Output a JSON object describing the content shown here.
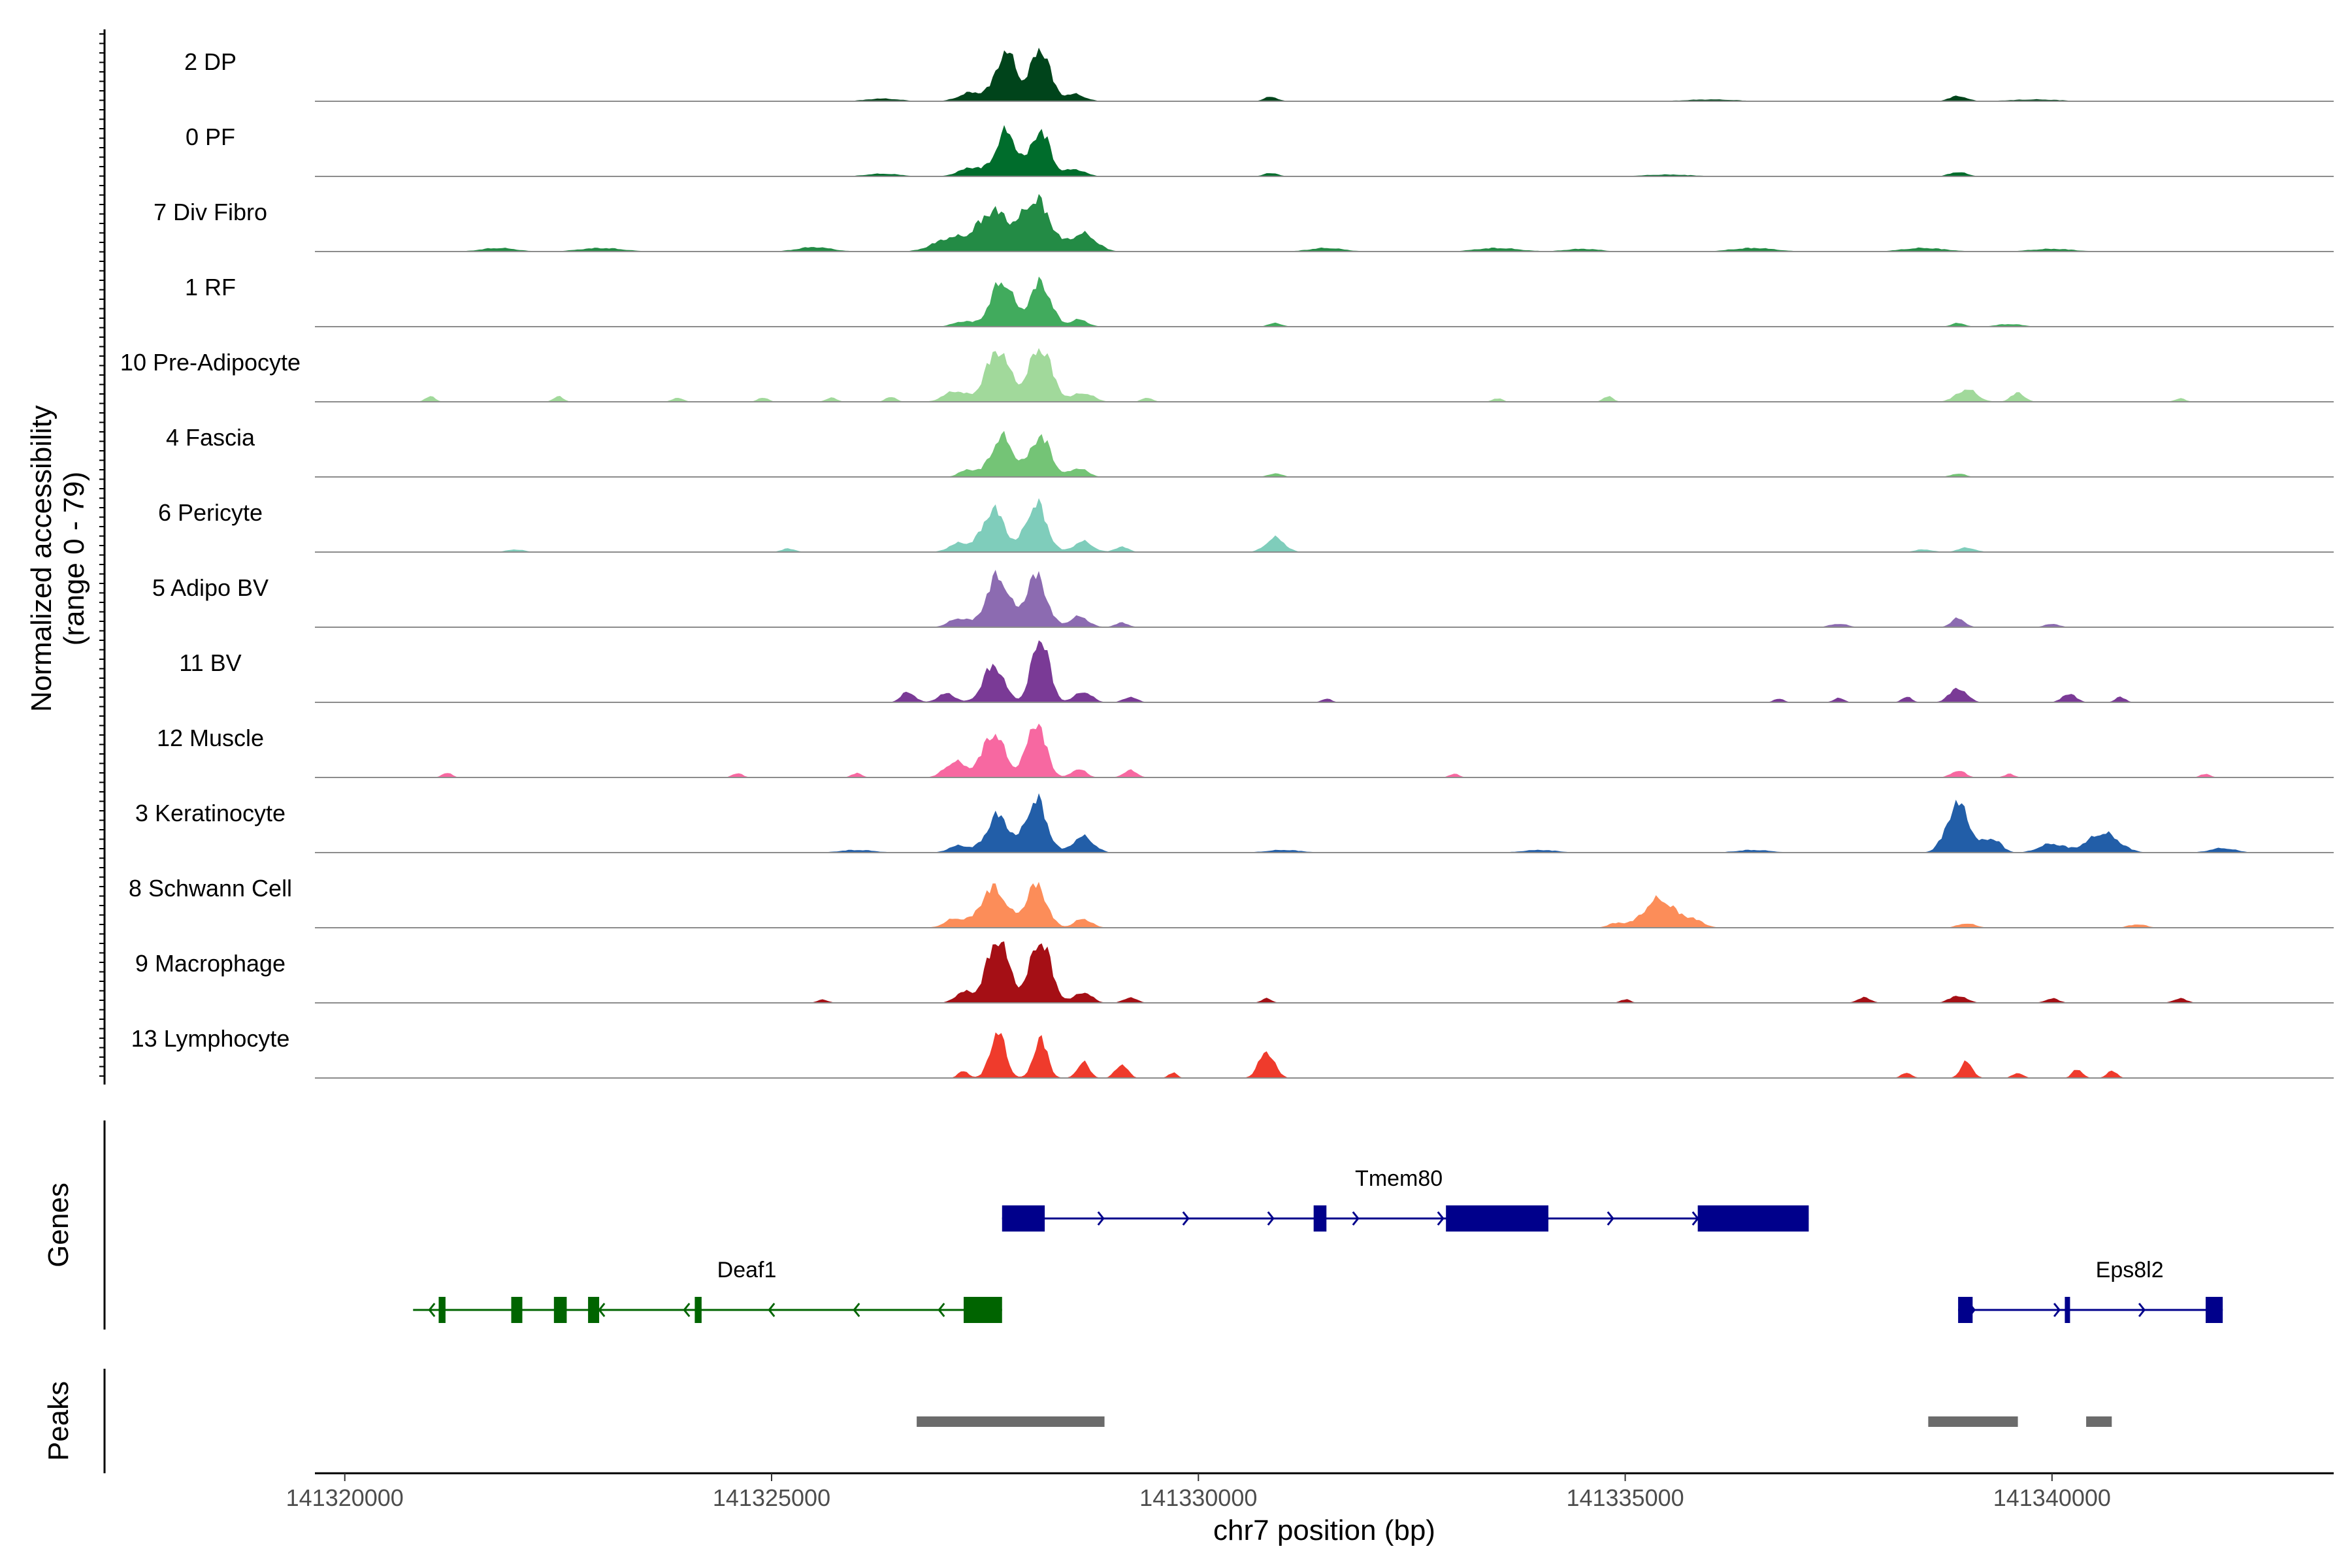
{
  "chart_data": {
    "type": "area",
    "title": "",
    "ylabel": "Normalized accessibility",
    "ylabel_range": "(range 0 - 79)",
    "ylim": [
      0,
      79
    ],
    "xlabel": "chr7 position (bp)",
    "xlim": [
      141319650,
      141343300
    ],
    "xticks": [
      141320000,
      141325000,
      141330000,
      141335000,
      141340000
    ],
    "xtick_labels": [
      "141320000",
      "141325000",
      "141330000",
      "141335000",
      "141340000"
    ],
    "tracks": [
      {
        "name": "2 DP",
        "color": "#00441b",
        "peaks": [
          [
            141327750,
            55,
            120
          ],
          [
            141328150,
            60,
            110
          ],
          [
            141327350,
            10,
            150
          ],
          [
            141328550,
            8,
            120
          ],
          [
            141330850,
            5,
            80
          ],
          [
            141338900,
            6,
            100
          ],
          [
            141326300,
            3,
            200
          ],
          [
            141336000,
            2,
            300
          ],
          [
            141339800,
            2,
            300
          ]
        ]
      },
      {
        "name": "0 PF",
        "color": "#006d2c",
        "peaks": [
          [
            141327750,
            50,
            120
          ],
          [
            141328150,
            52,
            110
          ],
          [
            141327350,
            10,
            150
          ],
          [
            141328550,
            8,
            120
          ],
          [
            141330850,
            4,
            80
          ],
          [
            141338900,
            5,
            100
          ],
          [
            141326300,
            3,
            200
          ],
          [
            141335500,
            2,
            300
          ]
        ]
      },
      {
        "name": "7 Div Fibro",
        "color": "#238b45",
        "peaks": [
          [
            141327600,
            45,
            180
          ],
          [
            141328100,
            58,
            160
          ],
          [
            141327100,
            15,
            200
          ],
          [
            141328650,
            20,
            150
          ],
          [
            141325500,
            5,
            200
          ],
          [
            141323000,
            4,
            250
          ],
          [
            141321800,
            4,
            200
          ],
          [
            141331500,
            4,
            200
          ],
          [
            141333500,
            4,
            250
          ],
          [
            141336500,
            4,
            250
          ],
          [
            141338500,
            4,
            250
          ],
          [
            141340000,
            3,
            250
          ],
          [
            141334500,
            3,
            200
          ]
        ]
      },
      {
        "name": "1 RF",
        "color": "#41ab5d",
        "peaks": [
          [
            141327700,
            52,
            130
          ],
          [
            141328150,
            50,
            120
          ],
          [
            141328600,
            8,
            100
          ],
          [
            141327250,
            6,
            120
          ],
          [
            141330900,
            4,
            80
          ],
          [
            141338900,
            4,
            80
          ],
          [
            141339500,
            3,
            150
          ]
        ]
      },
      {
        "name": "10 Pre-Adipocyte",
        "color": "#a1d99b",
        "peaks": [
          [
            141327650,
            58,
            140
          ],
          [
            141328150,
            62,
            130
          ],
          [
            141327150,
            12,
            130
          ],
          [
            141328650,
            10,
            120
          ],
          [
            141321000,
            6,
            60
          ],
          [
            141322500,
            6,
            60
          ],
          [
            141323900,
            5,
            60
          ],
          [
            141324900,
            5,
            60
          ],
          [
            141325700,
            5,
            60
          ],
          [
            141326400,
            6,
            60
          ],
          [
            141329400,
            5,
            60
          ],
          [
            141333500,
            4,
            60
          ],
          [
            141334800,
            6,
            60
          ],
          [
            141339000,
            14,
            120
          ],
          [
            141339600,
            10,
            80
          ],
          [
            141341500,
            4,
            60
          ]
        ]
      },
      {
        "name": "4 Fascia",
        "color": "#74c476",
        "peaks": [
          [
            141327700,
            45,
            130
          ],
          [
            141328150,
            46,
            120
          ],
          [
            141328600,
            10,
            100
          ],
          [
            141327300,
            8,
            100
          ],
          [
            141330900,
            4,
            80
          ],
          [
            141338900,
            4,
            80
          ]
        ]
      },
      {
        "name": "6 Pericyte",
        "color": "#7fcdbb",
        "peaks": [
          [
            141327600,
            48,
            130
          ],
          [
            141328100,
            55,
            120
          ],
          [
            141328650,
            12,
            110
          ],
          [
            141327200,
            10,
            120
          ],
          [
            141329100,
            6,
            80
          ],
          [
            141330900,
            16,
            110
          ],
          [
            141325200,
            4,
            80
          ],
          [
            141322000,
            3,
            100
          ],
          [
            141339000,
            5,
            100
          ],
          [
            141338500,
            3,
            100
          ]
        ]
      },
      {
        "name": "5 Adipo BV",
        "color": "#8c6bb1",
        "peaks": [
          [
            141327650,
            58,
            130
          ],
          [
            141328100,
            58,
            120
          ],
          [
            141328600,
            12,
            110
          ],
          [
            141327200,
            10,
            120
          ],
          [
            141329100,
            5,
            80
          ],
          [
            141338900,
            10,
            80
          ],
          [
            141337500,
            4,
            100
          ],
          [
            141340000,
            4,
            80
          ]
        ]
      },
      {
        "name": "11 BV",
        "color": "#7a3a96",
        "peaks": [
          [
            141327600,
            42,
            120
          ],
          [
            141328150,
            75,
            100
          ],
          [
            141328650,
            12,
            100
          ],
          [
            141326600,
            12,
            80
          ],
          [
            141327050,
            10,
            100
          ],
          [
            141329200,
            6,
            80
          ],
          [
            141338900,
            16,
            100
          ],
          [
            141338300,
            6,
            60
          ],
          [
            141340200,
            10,
            80
          ],
          [
            141340800,
            6,
            60
          ],
          [
            141337500,
            5,
            60
          ],
          [
            141331500,
            4,
            60
          ],
          [
            141336800,
            4,
            60
          ]
        ]
      },
      {
        "name": "12 Muscle",
        "color": "#f768a1",
        "peaks": [
          [
            141327600,
            50,
            130
          ],
          [
            141328100,
            62,
            110
          ],
          [
            141327150,
            18,
            120
          ],
          [
            141328600,
            10,
            80
          ],
          [
            141329200,
            8,
            80
          ],
          [
            141321200,
            5,
            60
          ],
          [
            141324600,
            5,
            60
          ],
          [
            141326000,
            5,
            60
          ],
          [
            141333000,
            4,
            60
          ],
          [
            141338900,
            8,
            80
          ],
          [
            141339500,
            4,
            60
          ],
          [
            141341800,
            4,
            60
          ]
        ]
      },
      {
        "name": "3 Keratinocyte",
        "color": "#225ea8",
        "peaks": [
          [
            141327650,
            42,
            130
          ],
          [
            141328100,
            60,
            120
          ],
          [
            141328650,
            18,
            120
          ],
          [
            141327200,
            8,
            120
          ],
          [
            141338900,
            55,
            130
          ],
          [
            141339300,
            16,
            100
          ],
          [
            141340600,
            22,
            180
          ],
          [
            141340000,
            10,
            150
          ],
          [
            141342000,
            5,
            150
          ],
          [
            141326000,
            3,
            200
          ],
          [
            141331000,
            3,
            200
          ],
          [
            141334000,
            3,
            200
          ],
          [
            141336500,
            3,
            200
          ]
        ]
      },
      {
        "name": "8 Schwann Cell",
        "color": "#fc8d59",
        "peaks": [
          [
            141327600,
            45,
            150
          ],
          [
            141328100,
            48,
            120
          ],
          [
            141327150,
            10,
            120
          ],
          [
            141328650,
            10,
            100
          ],
          [
            141335400,
            32,
            180
          ],
          [
            141335800,
            8,
            120
          ],
          [
            141334900,
            5,
            100
          ],
          [
            141339000,
            5,
            100
          ],
          [
            141341000,
            4,
            100
          ]
        ]
      },
      {
        "name": "9 Macrophage",
        "color": "#a50f15",
        "peaks": [
          [
            141327650,
            72,
            130
          ],
          [
            141328150,
            72,
            120
          ],
          [
            141328650,
            12,
            100
          ],
          [
            141327250,
            12,
            100
          ],
          [
            141329200,
            6,
            80
          ],
          [
            141330800,
            5,
            60
          ],
          [
            141338900,
            8,
            100
          ],
          [
            141337800,
            6,
            80
          ],
          [
            141340000,
            5,
            80
          ],
          [
            141341500,
            5,
            80
          ],
          [
            141325600,
            4,
            60
          ],
          [
            141335000,
            4,
            60
          ]
        ]
      },
      {
        "name": "13 Lymphocyte",
        "color": "#ef3b2c",
        "peaks": [
          [
            141327650,
            52,
            90
          ],
          [
            141328150,
            45,
            80
          ],
          [
            141328650,
            18,
            70
          ],
          [
            141329100,
            16,
            70
          ],
          [
            141327250,
            8,
            60
          ],
          [
            141330800,
            30,
            90
          ],
          [
            141339000,
            18,
            70
          ],
          [
            141338300,
            6,
            60
          ],
          [
            141340300,
            10,
            60
          ],
          [
            141340700,
            8,
            60
          ],
          [
            141339600,
            6,
            60
          ],
          [
            141329700,
            6,
            50
          ]
        ]
      }
    ],
    "genes_panel_title": "Genes",
    "genes": [
      {
        "name": "Tmem80",
        "strand": "+",
        "color": "#00008b",
        "start": 141327700,
        "end": 141337150,
        "exons": [
          [
            141327700,
            141328200
          ],
          [
            141331350,
            141331500
          ],
          [
            141332900,
            141334100
          ],
          [
            141335850,
            141337150
          ]
        ]
      },
      {
        "name": "Deaf1",
        "strand": "-",
        "color": "#006400",
        "start": 141320800,
        "end": 141327700,
        "exons": [
          [
            141321100,
            141321180
          ],
          [
            141321950,
            141322080
          ],
          [
            141322450,
            141322600
          ],
          [
            141322850,
            141322980
          ],
          [
            141324100,
            141324180
          ],
          [
            141327250,
            141327700
          ]
        ]
      },
      {
        "name": "Eps8l2",
        "strand": "+",
        "color": "#00008b",
        "start": 141338900,
        "end": 141342000,
        "exons": [
          [
            141338900,
            141339070
          ],
          [
            141340150,
            141340180
          ],
          [
            141341800,
            141342000
          ]
        ]
      }
    ],
    "peaks_panel_title": "Peaks",
    "peak_regions": [
      [
        141326700,
        141328900
      ],
      [
        141338550,
        141339600
      ],
      [
        141340400,
        141340700
      ]
    ]
  }
}
